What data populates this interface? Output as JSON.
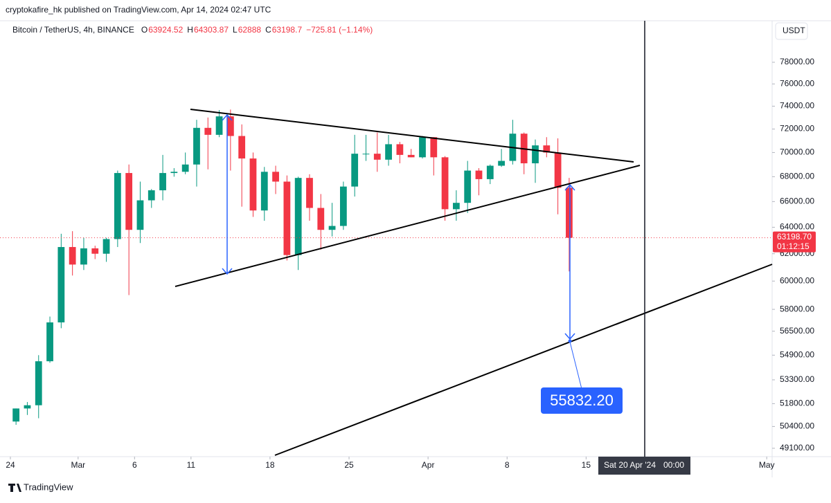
{
  "header": "cryptokafire_hk published on TradingView.com, Apr 14, 2024 02:47 UTC",
  "chart_data": {
    "type": "candlestick",
    "symbol": "Bitcoin / TetherUS, 4h, BINANCE",
    "legend": [
      {
        "label": "O",
        "value": 63924.52
      },
      {
        "label": "H",
        "value": 64303.87
      },
      {
        "label": "L",
        "value": 62888.0
      },
      {
        "label": "C",
        "value": 63198.7
      }
    ],
    "change": "−725.81 (−1.14%)",
    "currency": "USDT",
    "log_scale": true,
    "up_color": "#089981",
    "down_color": "#f23645",
    "xlim": [
      -0.92,
      67.48
    ],
    "xticks": [
      {
        "value": 0,
        "label": "24"
      },
      {
        "value": 6,
        "label": "Mar"
      },
      {
        "value": 11,
        "label": "6"
      },
      {
        "value": 16,
        "label": "11"
      },
      {
        "value": 23,
        "label": "18"
      },
      {
        "value": 30,
        "label": "25"
      },
      {
        "value": 37,
        "label": "Apr"
      },
      {
        "value": 44,
        "label": "8"
      },
      {
        "value": 51,
        "label": "15"
      },
      {
        "value": 67,
        "label": "May"
      }
    ],
    "ylim": [
      48610,
      81980
    ],
    "yticks": [
      {
        "value": 49100,
        "label": "49100.00"
      },
      {
        "value": 50400,
        "label": "50400.00"
      },
      {
        "value": 51800,
        "label": "51800.00"
      },
      {
        "value": 53300,
        "label": "53300.00"
      },
      {
        "value": 54900,
        "label": "54900.00"
      },
      {
        "value": 56500,
        "label": "56500.00"
      },
      {
        "value": 58000,
        "label": "58000.00"
      },
      {
        "value": 60000,
        "label": "60000.00"
      },
      {
        "value": 62000,
        "label": "62000.00"
      },
      {
        "value": 64000,
        "label": "64000.00"
      },
      {
        "value": 66000,
        "label": "66000.00"
      },
      {
        "value": 68000,
        "label": "68000.00"
      },
      {
        "value": 70000,
        "label": "70000.00"
      },
      {
        "value": 72000,
        "label": "72000.00"
      },
      {
        "value": 74000,
        "label": "74000.00"
      },
      {
        "value": 76000,
        "label": "76000.00"
      },
      {
        "value": 78000,
        "label": "78000.00"
      }
    ],
    "x": [
      0,
      1,
      2,
      3,
      4,
      5,
      6,
      7,
      8,
      9,
      10,
      11,
      12,
      13,
      14,
      15,
      16,
      17,
      18,
      19,
      20,
      21,
      22,
      23,
      24,
      25,
      26,
      27,
      28,
      29,
      30,
      31,
      32,
      33,
      34,
      35,
      36,
      37,
      38,
      39,
      40,
      41,
      42,
      43,
      44,
      45,
      46,
      47,
      48,
      49
    ],
    "open": [
      50700,
      51500,
      51700,
      54500,
      57100,
      62500,
      61200,
      62400,
      62000,
      63100,
      68300,
      63800,
      66100,
      66900,
      68300,
      68400,
      69000,
      72100,
      71500,
      73100,
      71400,
      69500,
      65300,
      68400,
      67600,
      61900,
      67900,
      65500,
      63800,
      64100,
      67200,
      69900,
      69900,
      69400,
      70700,
      69800,
      69600,
      71300,
      69600,
      65400,
      65900,
      68500,
      67800,
      68900,
      69300,
      71600,
      69100,
      70600,
      70000,
      67100
    ],
    "high": [
      51500,
      51900,
      54900,
      57500,
      63500,
      63700,
      63200,
      62600,
      63200,
      68500,
      69000,
      67600,
      67000,
      69800,
      68700,
      70000,
      72800,
      73000,
      73650,
      73700,
      72400,
      70000,
      68800,
      68900,
      68100,
      68000,
      68200,
      66600,
      65900,
      67600,
      71500,
      71500,
      71700,
      71500,
      70900,
      70300,
      71400,
      71300,
      69700,
      66900,
      69300,
      68700,
      69000,
      70300,
      72800,
      71700,
      71100,
      71300,
      71200,
      67900
    ],
    "low": [
      50500,
      51100,
      50900,
      54400,
      56700,
      60400,
      60800,
      61600,
      61400,
      62500,
      59000,
      62800,
      65500,
      66100,
      68000,
      68200,
      67200,
      68600,
      71300,
      68500,
      65600,
      64800,
      64500,
      66600,
      61500,
      60800,
      64500,
      62300,
      63300,
      63800,
      66400,
      69300,
      68400,
      68900,
      69100,
      69600,
      69500,
      68100,
      64500,
      64500,
      65100,
      66500,
      67400,
      68800,
      69000,
      68200,
      67500,
      69600,
      65000,
      60700
    ],
    "close": [
      51500,
      51700,
      54500,
      57100,
      62500,
      61200,
      62400,
      62000,
      63100,
      68300,
      63800,
      66100,
      66900,
      68300,
      68400,
      69000,
      72100,
      71500,
      73100,
      71400,
      69500,
      65300,
      68400,
      67600,
      61900,
      67900,
      65500,
      63800,
      64100,
      67200,
      69900,
      69900,
      69400,
      70700,
      69800,
      69600,
      71300,
      69600,
      65400,
      65900,
      68500,
      67800,
      68900,
      69300,
      71600,
      69100,
      70600,
      70000,
      67100,
      63198.7
    ],
    "last_price": {
      "label": "63198.70",
      "value": 63198.7
    },
    "countdown": "01:12:15",
    "target": "55832.20",
    "crosshair_date": "Sat 20 Apr '24",
    "crosshair_time": "00:00"
  },
  "footer": "TradingView"
}
